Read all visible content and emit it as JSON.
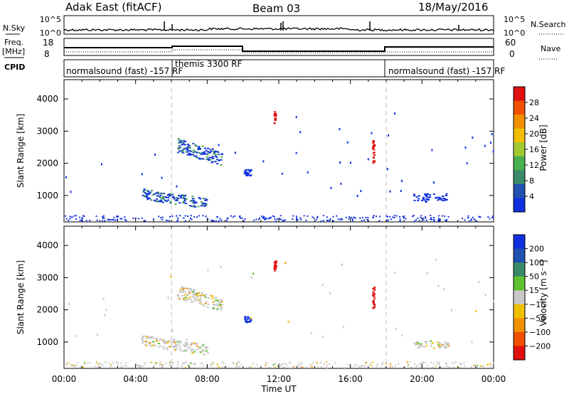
{
  "header": {
    "title": "Adak East (fitACF)",
    "beam": "Beam 03",
    "date": "18/May/2016"
  },
  "top_panels": {
    "nsky_label": "N.Sky",
    "nsky_ticks": [
      "10^5",
      "10^0"
    ],
    "nsearch_label": "N.Search",
    "freq_label": "Freq.",
    "freq_unit": "[MHz]",
    "freq_ticks": [
      "18",
      "8"
    ],
    "nave_label": "Nave",
    "nave_ticks": [
      "60",
      "0"
    ],
    "cpid_label": "CPID"
  },
  "cpid_segments": [
    {
      "label": "normalsound (fast) -157 RF",
      "start_h": 0,
      "end_h": 6
    },
    {
      "label": "themis 3300 RF",
      "start_h": 6,
      "end_h": 18
    },
    {
      "label": "normalsound (fast) -157 RF",
      "start_h": 18,
      "end_h": 24
    }
  ],
  "colors": {
    "power": [
      "#1030e0",
      "#2050b0",
      "#3a8a6a",
      "#48b050",
      "#a0c830",
      "#f0c000",
      "#f09000",
      "#f05000",
      "#e01010"
    ],
    "velocity": [
      "#e01010",
      "#f05000",
      "#f09000",
      "#f0c000",
      "#c8c8c8",
      "#60c030",
      "#3a8a6a",
      "#2050b0",
      "#1030e0"
    ]
  },
  "chart_data": [
    {
      "type": "heatmap",
      "name": "power",
      "xlabel": "",
      "ylabel": "Slant Range [km]",
      "xlim": [
        0,
        24
      ],
      "ylim": [
        180,
        4600
      ],
      "yticks": [
        "4000",
        "3000",
        "2000",
        "1000"
      ],
      "colorbar_label": "Power [dB]",
      "colorbar_ticks": [
        "28",
        "24",
        "20",
        "16",
        "12",
        "8",
        "4"
      ],
      "clusters": [
        {
          "t0": 6.3,
          "t1": 8.8,
          "r0": 1950,
          "r1": 2750,
          "value": "mixed"
        },
        {
          "t0": 4.3,
          "t1": 8.0,
          "r0": 600,
          "r1": 1200,
          "value": "mixed"
        },
        {
          "t0": 10.0,
          "t1": 10.4,
          "r0": 1600,
          "r1": 1800,
          "value": 4
        },
        {
          "t0": 11.7,
          "t1": 11.8,
          "r0": 3200,
          "r1": 3600,
          "value": 28
        },
        {
          "t0": 17.2,
          "t1": 17.3,
          "r0": 2000,
          "r1": 2700,
          "value": 28
        },
        {
          "t0": 19.5,
          "t1": 21.5,
          "r0": 800,
          "r1": 1050,
          "value": 4
        }
      ]
    },
    {
      "type": "heatmap",
      "name": "velocity",
      "xlabel": "Time UT",
      "ylabel": "Slant Range [km]",
      "xlim": [
        0,
        24
      ],
      "ylim": [
        180,
        4600
      ],
      "xticks": [
        "00:00",
        "04:00",
        "08:00",
        "12:00",
        "16:00",
        "20:00",
        "00:00"
      ],
      "yticks": [
        "4000",
        "3000",
        "2000",
        "1000"
      ],
      "colorbar_label": "Velocity [m s⁻¹]",
      "colorbar_ticks": [
        "200",
        "100",
        "50",
        "15",
        "−15",
        "−50",
        "−100",
        "−200"
      ],
      "clusters": [
        {
          "t0": 6.3,
          "t1": 8.8,
          "r0": 1950,
          "r1": 2750,
          "value": 0
        },
        {
          "t0": 4.3,
          "t1": 8.0,
          "r0": 600,
          "r1": 1200,
          "value": 0
        },
        {
          "t0": 10.0,
          "t1": 10.4,
          "r0": 1600,
          "r1": 1800,
          "value": 200
        },
        {
          "t0": 11.7,
          "t1": 11.8,
          "r0": 3200,
          "r1": 3600,
          "value": -200
        },
        {
          "t0": 17.2,
          "t1": 17.3,
          "r0": 2000,
          "r1": 2700,
          "value": -200
        },
        {
          "t0": 19.5,
          "t1": 21.5,
          "r0": 800,
          "r1": 1050,
          "value": 0
        }
      ]
    }
  ]
}
